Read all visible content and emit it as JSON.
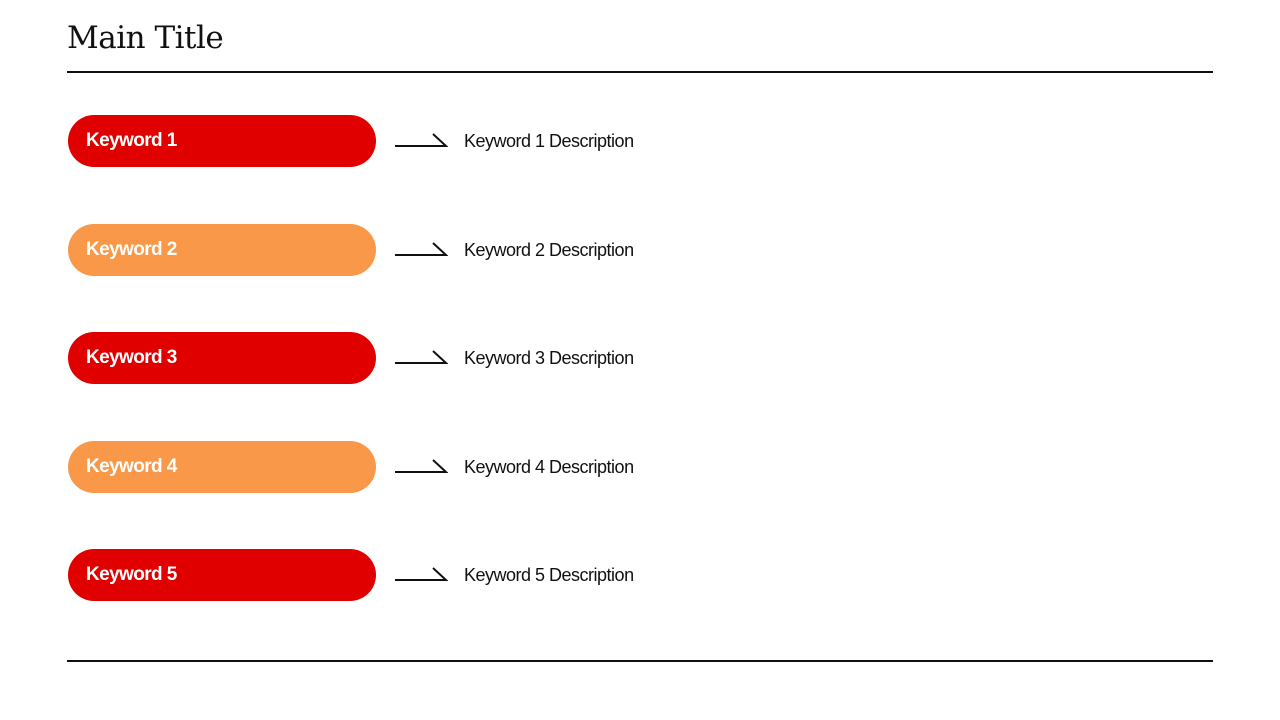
{
  "title": "Main Title",
  "colors": {
    "red": "#e00000",
    "orange": "#f89848"
  },
  "items": [
    {
      "keyword": "Keyword 1",
      "description": "Keyword 1 Description",
      "color": "#e00000",
      "icon": "arrow-right-icon"
    },
    {
      "keyword": "Keyword 2",
      "description": "Keyword 2 Description",
      "color": "#f89848",
      "icon": "arrow-right-icon"
    },
    {
      "keyword": "Keyword 3",
      "description": "Keyword 3 Description",
      "color": "#e00000",
      "icon": "arrow-right-icon"
    },
    {
      "keyword": "Keyword 4",
      "description": "Keyword 4 Description",
      "color": "#f89848",
      "icon": "arrow-right-icon"
    },
    {
      "keyword": "Keyword 5",
      "description": "Keyword 5 Description",
      "color": "#e00000",
      "icon": "arrow-right-icon"
    }
  ]
}
